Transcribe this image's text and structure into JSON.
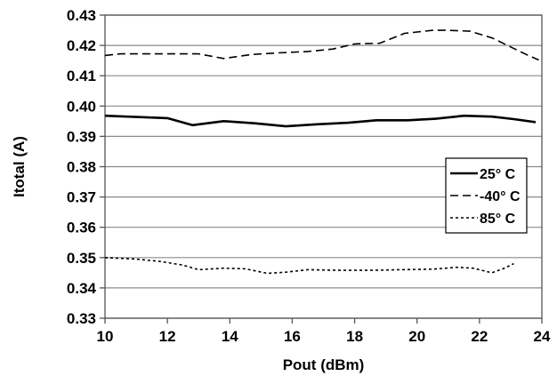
{
  "chart_data": {
    "type": "line",
    "title": "",
    "xlabel": "Pout (dBm)",
    "ylabel": "Itotal (A)",
    "xlim": [
      10,
      24
    ],
    "ylim": [
      0.33,
      0.43
    ],
    "x_ticks": [
      10,
      12,
      14,
      16,
      18,
      20,
      22,
      24
    ],
    "x_tick_labels": [
      "10",
      "12",
      "14",
      "16",
      "18",
      "20",
      "22",
      "24"
    ],
    "y_ticks": [
      0.33,
      0.34,
      0.35,
      0.36,
      0.37,
      0.38,
      0.39,
      0.4,
      0.41,
      0.42,
      0.43
    ],
    "y_tick_labels": [
      "0.33",
      "0.34",
      "0.35",
      "0.36",
      "0.37",
      "0.38",
      "0.39",
      "0.40",
      "0.41",
      "0.42",
      "0.43"
    ],
    "grid": "horizontal",
    "legend_position": "right",
    "series": [
      {
        "name": "25° C",
        "style": "solid",
        "color": "#000000",
        "x": [
          10,
          11,
          12,
          12.8,
          13.8,
          14.8,
          15.8,
          16.8,
          17.8,
          18.7,
          19.7,
          20.6,
          21.5,
          22.4,
          23.1,
          23.8
        ],
        "y": [
          0.3968,
          0.3964,
          0.396,
          0.3937,
          0.395,
          0.3943,
          0.3933,
          0.394,
          0.3945,
          0.3953,
          0.3953,
          0.3958,
          0.3968,
          0.3965,
          0.3957,
          0.3947
        ]
      },
      {
        "name": "-40° C",
        "style": "dashed",
        "color": "#000000",
        "x": [
          10,
          10.5,
          11.5,
          12.5,
          13,
          13.8,
          14.7,
          15.5,
          16.5,
          17.3,
          18,
          18.8,
          19.6,
          20.5,
          21,
          21.7,
          22.4,
          23,
          23.5,
          23.9
        ],
        "y": [
          0.4167,
          0.4172,
          0.4172,
          0.4172,
          0.4172,
          0.4157,
          0.417,
          0.4175,
          0.418,
          0.4188,
          0.4205,
          0.4207,
          0.424,
          0.425,
          0.425,
          0.4247,
          0.4225,
          0.4195,
          0.417,
          0.4152
        ]
      },
      {
        "name": "85° C",
        "style": "dotted",
        "color": "#000000",
        "x": [
          10,
          11,
          11.8,
          12.5,
          13,
          13.8,
          14.5,
          15.2,
          15.8,
          16.5,
          17.5,
          18.5,
          19.5,
          20.5,
          21.3,
          21.8,
          22.4,
          22.8,
          23.1
        ],
        "y": [
          0.35,
          0.3495,
          0.3487,
          0.3475,
          0.346,
          0.3465,
          0.3463,
          0.3448,
          0.3452,
          0.346,
          0.3458,
          0.3458,
          0.346,
          0.3462,
          0.3468,
          0.3465,
          0.345,
          0.3465,
          0.348
        ]
      }
    ]
  },
  "colors": {
    "background": "#ffffff",
    "grid": "#8a8a8a",
    "frame": "#555555",
    "series": "#000000"
  }
}
